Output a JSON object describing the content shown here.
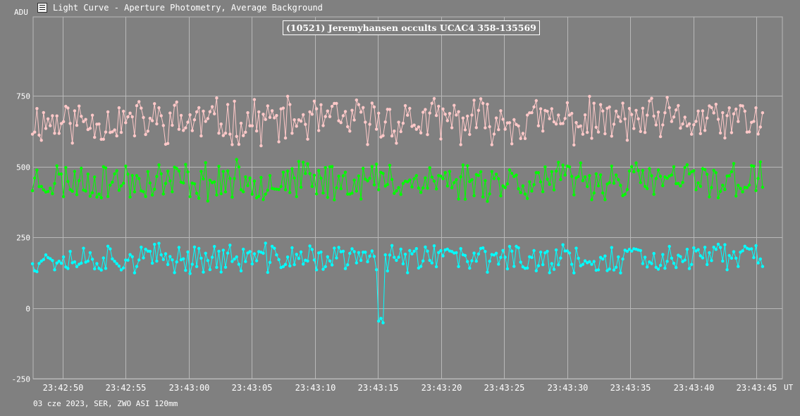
{
  "window": {
    "title": "Light Curve - Aperture Photometry, Average Background",
    "icon": "light-curve-app-icon"
  },
  "footer": {
    "text": "03 cze 2023, SER, ZWO ASI 120mm"
  },
  "colors": {
    "background": "#808080",
    "grid": "#b8b8b8",
    "series_target": "#ffc8c8",
    "series_comp": "#00ff00",
    "series_bg": "#00ffff"
  },
  "chart_data": {
    "type": "scatter",
    "title": "(10521) Jeremyhansen occults UCAC4 358-135569",
    "ylabel": "ADU",
    "xlabel": "UT",
    "ylim": [
      -250,
      1000
    ],
    "xlim": [
      47.6,
      65.5
    ],
    "yticks": [
      {
        "value": 750,
        "label": "750"
      },
      {
        "value": 500,
        "label": "500"
      },
      {
        "value": 250,
        "label": "250"
      },
      {
        "value": 0,
        "label": "0"
      },
      {
        "value": -250,
        "label": "-250"
      }
    ],
    "xticks": [
      {
        "value": 50,
        "label": "23:42:50"
      },
      {
        "value": 55,
        "label": "23:42:55"
      },
      {
        "value": 60,
        "label": "23:43:00"
      },
      {
        "value": 65,
        "label": "23:43:05"
      },
      {
        "value": 70,
        "label": "23:43:10"
      },
      {
        "value": 75,
        "label": "23:43:15"
      },
      {
        "value": 80,
        "label": "23:43:20"
      },
      {
        "value": 85,
        "label": "23:43:25"
      },
      {
        "value": 90,
        "label": "23:43:30"
      },
      {
        "value": 95,
        "label": "23:43:35"
      },
      {
        "value": 100,
        "label": "23:43:40"
      },
      {
        "value": 105,
        "label": "23:43:45"
      }
    ],
    "grid": true,
    "x_start": 47.6,
    "x_end": 105.5,
    "samples_per_series": 330,
    "series": [
      {
        "color": "#ffc8c8",
        "mean": 660,
        "spread": 70,
        "seed": 11
      },
      {
        "color": "#00ff00",
        "mean": 450,
        "spread": 60,
        "seed": 23
      },
      {
        "color": "#00ffff",
        "mean": 175,
        "spread": 45,
        "seed": 37
      }
    ],
    "occultation": {
      "series": 2,
      "start": 75.0,
      "end": 75.5,
      "value": -40
    }
  }
}
